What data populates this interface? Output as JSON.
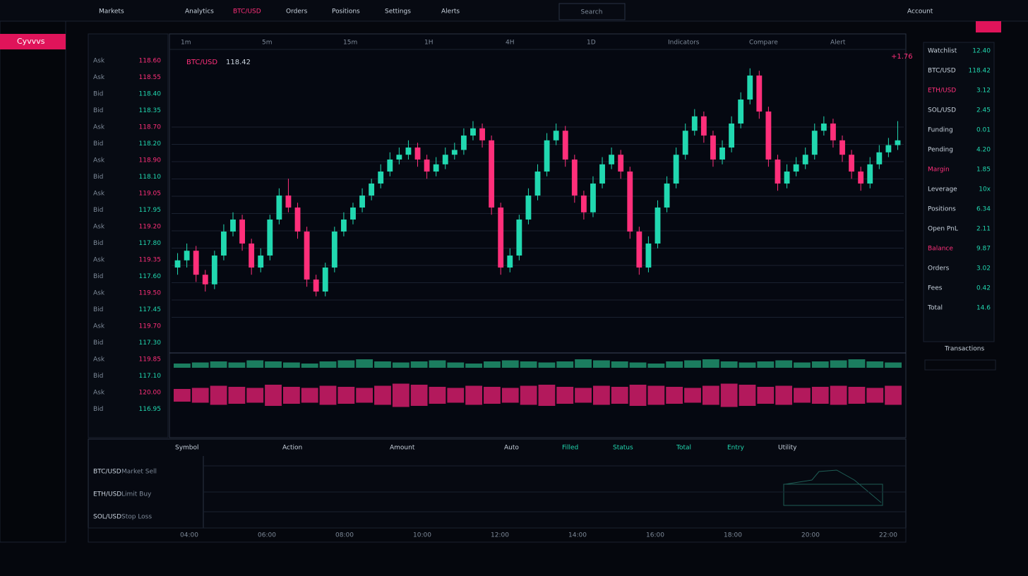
{
  "brand": "Cyvvvs",
  "topbar": [
    "Markets",
    "Analytics",
    "BTC/USD",
    "Orders",
    "Positions",
    "Settings",
    "Alerts",
    "Account"
  ],
  "search": "Search",
  "ticker": {
    "symbol": "BTC/USD",
    "price": "118.42",
    "change": "+1.76"
  },
  "orderbook": [
    [
      "Ask",
      "118.60"
    ],
    [
      "Ask",
      "118.55"
    ],
    [
      "Bid",
      "118.40"
    ],
    [
      "Bid",
      "118.35"
    ],
    [
      "Ask",
      "118.70"
    ],
    [
      "Bid",
      "118.20"
    ],
    [
      "Ask",
      "118.90"
    ],
    [
      "Bid",
      "118.10"
    ],
    [
      "Ask",
      "119.05"
    ],
    [
      "Bid",
      "117.95"
    ],
    [
      "Ask",
      "119.20"
    ],
    [
      "Bid",
      "117.80"
    ],
    [
      "Ask",
      "119.35"
    ],
    [
      "Bid",
      "117.60"
    ],
    [
      "Ask",
      "119.50"
    ],
    [
      "Bid",
      "117.45"
    ],
    [
      "Ask",
      "119.70"
    ],
    [
      "Bid",
      "117.30"
    ],
    [
      "Ask",
      "119.85"
    ],
    [
      "Bid",
      "117.10"
    ],
    [
      "Ask",
      "120.00"
    ],
    [
      "Bid",
      "116.95"
    ]
  ],
  "toolbar": [
    "1m",
    "5m",
    "15m",
    "1H",
    "4H",
    "1D",
    "Indicators",
    "Compare",
    "Alert"
  ],
  "chart_data": {
    "type": "candlestick",
    "candles": [
      [
        15,
        21,
        12,
        18
      ],
      [
        18,
        25,
        15,
        22
      ],
      [
        22,
        24,
        9,
        12
      ],
      [
        12,
        14,
        5,
        8
      ],
      [
        8,
        22,
        6,
        20
      ],
      [
        20,
        33,
        18,
        30
      ],
      [
        30,
        38,
        28,
        35
      ],
      [
        35,
        37,
        22,
        25
      ],
      [
        25,
        27,
        12,
        15
      ],
      [
        15,
        23,
        13,
        20
      ],
      [
        20,
        37,
        18,
        35
      ],
      [
        35,
        48,
        33,
        45
      ],
      [
        45,
        52,
        38,
        40
      ],
      [
        40,
        42,
        27,
        30
      ],
      [
        30,
        32,
        7,
        10
      ],
      [
        10,
        12,
        3,
        5
      ],
      [
        5,
        17,
        3,
        15
      ],
      [
        15,
        32,
        13,
        30
      ],
      [
        30,
        38,
        28,
        35
      ],
      [
        35,
        42,
        33,
        40
      ],
      [
        40,
        48,
        38,
        45
      ],
      [
        45,
        52,
        43,
        50
      ],
      [
        50,
        58,
        48,
        55
      ],
      [
        55,
        63,
        53,
        60
      ],
      [
        60,
        65,
        58,
        62
      ],
      [
        62,
        68,
        60,
        65
      ],
      [
        65,
        67,
        57,
        60
      ],
      [
        60,
        62,
        52,
        55
      ],
      [
        55,
        61,
        53,
        58
      ],
      [
        58,
        65,
        56,
        62
      ],
      [
        62,
        67,
        60,
        64
      ],
      [
        64,
        73,
        62,
        70
      ],
      [
        70,
        76,
        68,
        73
      ],
      [
        73,
        75,
        65,
        68
      ],
      [
        68,
        70,
        37,
        40
      ],
      [
        40,
        42,
        12,
        15
      ],
      [
        15,
        23,
        13,
        20
      ],
      [
        20,
        37,
        18,
        35
      ],
      [
        35,
        48,
        33,
        45
      ],
      [
        45,
        58,
        43,
        55
      ],
      [
        55,
        71,
        53,
        68
      ],
      [
        68,
        75,
        66,
        72
      ],
      [
        72,
        74,
        57,
        60
      ],
      [
        60,
        62,
        42,
        45
      ],
      [
        45,
        47,
        35,
        38
      ],
      [
        38,
        53,
        36,
        50
      ],
      [
        50,
        61,
        48,
        58
      ],
      [
        58,
        65,
        56,
        62
      ],
      [
        62,
        64,
        52,
        55
      ],
      [
        55,
        57,
        27,
        30
      ],
      [
        30,
        32,
        12,
        15
      ],
      [
        15,
        28,
        13,
        25
      ],
      [
        25,
        43,
        23,
        40
      ],
      [
        40,
        53,
        38,
        50
      ],
      [
        50,
        65,
        48,
        62
      ],
      [
        62,
        75,
        60,
        72
      ],
      [
        72,
        81,
        70,
        78
      ],
      [
        78,
        80,
        67,
        70
      ],
      [
        70,
        72,
        57,
        60
      ],
      [
        60,
        68,
        58,
        65
      ],
      [
        65,
        78,
        63,
        75
      ],
      [
        75,
        88,
        73,
        85
      ],
      [
        85,
        98,
        83,
        95
      ],
      [
        95,
        97,
        77,
        80
      ],
      [
        80,
        82,
        57,
        60
      ],
      [
        60,
        62,
        47,
        50
      ],
      [
        50,
        58,
        48,
        55
      ],
      [
        55,
        61,
        53,
        58
      ],
      [
        58,
        65,
        56,
        62
      ],
      [
        62,
        75,
        60,
        72
      ],
      [
        72,
        78,
        70,
        75
      ],
      [
        75,
        77,
        65,
        68
      ],
      [
        68,
        70,
        59,
        62
      ],
      [
        62,
        64,
        52,
        55
      ],
      [
        55,
        57,
        47,
        50
      ],
      [
        50,
        61,
        48,
        58
      ],
      [
        58,
        66,
        56,
        63
      ],
      [
        63,
        69,
        61,
        66
      ],
      [
        66,
        76,
        64,
        68
      ]
    ],
    "ylim": [
      0,
      100
    ],
    "up_color": "#21d8b0",
    "down_color": "#ff2f7a",
    "volume_buy": [
      4,
      5,
      6,
      5,
      7,
      6,
      5,
      4,
      6,
      7,
      8,
      6,
      5,
      6,
      7,
      5,
      4,
      6,
      7,
      6,
      5,
      6,
      8,
      7,
      6,
      5,
      4,
      6,
      7,
      8,
      6,
      5,
      6,
      7,
      5,
      6,
      7,
      8,
      6,
      5
    ],
    "volume_sell": [
      6,
      7,
      9,
      8,
      7,
      10,
      8,
      7,
      9,
      8,
      7,
      9,
      11,
      10,
      8,
      7,
      9,
      8,
      7,
      9,
      10,
      8,
      7,
      9,
      8,
      10,
      9,
      8,
      7,
      9,
      11,
      10,
      8,
      9,
      7,
      8,
      9,
      8,
      7,
      9
    ]
  },
  "bottom_tabs": [
    "Symbol",
    "Action",
    "Amount",
    "Auto",
    "Filled",
    "Status",
    "Total",
    "Entry",
    "Utility"
  ],
  "bottom_rows": [
    [
      "BTC/USD",
      "Market Sell"
    ],
    [
      "ETH/USD",
      "Limit Buy"
    ],
    [
      "SOL/USD",
      "Stop Loss"
    ]
  ],
  "time_labels": [
    "04:00",
    "06:00",
    "08:00",
    "10:00",
    "12:00",
    "14:00",
    "16:00",
    "18:00",
    "20:00",
    "22:00"
  ],
  "right_panel": [
    [
      "Watchlist",
      "12.40"
    ],
    [
      "BTC/USD",
      "118.42"
    ],
    [
      "ETH/USD",
      "3.12"
    ],
    [
      "SOL/USD",
      "2.45"
    ],
    [
      "Funding",
      "0.01"
    ],
    [
      "Pending",
      "4.20"
    ],
    [
      "Margin",
      "1.85"
    ],
    [
      "Leverage",
      "10x"
    ],
    [
      "Positions",
      "6.34"
    ],
    [
      "Open PnL",
      "2.11"
    ],
    [
      "Balance",
      "9.87"
    ],
    [
      "Orders",
      "3.02"
    ],
    [
      "Fees",
      "0.42"
    ],
    [
      "Total",
      "14.6"
    ]
  ],
  "right_footer": "Transactions"
}
